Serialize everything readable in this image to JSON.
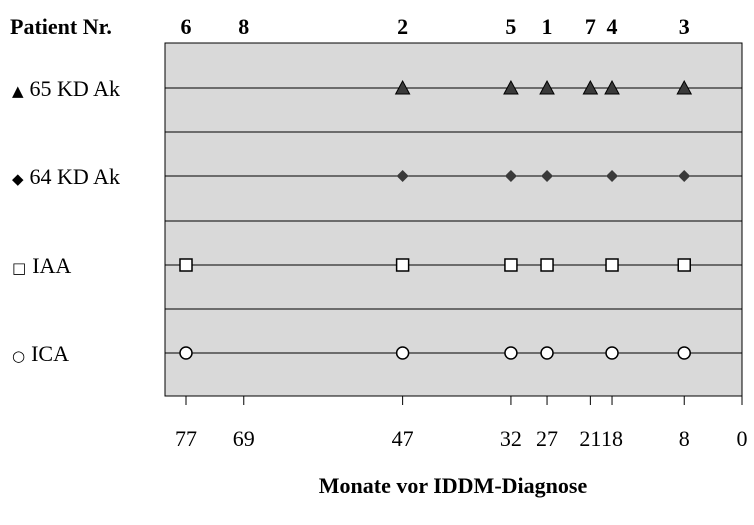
{
  "chart_data": {
    "type": "scatter",
    "patient_header": "Patient Nr.",
    "xlabel": "Monate vor IDDM-Diagnose",
    "x_ticks": [
      77,
      69,
      47,
      32,
      27,
      21,
      18,
      8,
      0
    ],
    "xlim": [
      80,
      0
    ],
    "x_reversed": true,
    "patients": [
      {
        "nr": "6",
        "months": 77
      },
      {
        "nr": "8",
        "months": 69
      },
      {
        "nr": "2",
        "months": 47
      },
      {
        "nr": "5",
        "months": 32
      },
      {
        "nr": "1",
        "months": 27
      },
      {
        "nr": "7",
        "months": 21
      },
      {
        "nr": "4",
        "months": 18
      },
      {
        "nr": "3",
        "months": 8
      }
    ],
    "series": [
      {
        "name": "65 KD Ak",
        "legend_symbol": "▲",
        "marker": "triangle",
        "x": [
          47,
          32,
          27,
          21,
          18,
          8
        ]
      },
      {
        "name": "64 KD Ak",
        "legend_symbol": "◆",
        "marker": "diamond",
        "x": [
          47,
          32,
          27,
          18,
          8
        ]
      },
      {
        "name": "IAA",
        "legend_symbol": "□",
        "marker": "square",
        "x": [
          77,
          47,
          32,
          27,
          18,
          8
        ]
      },
      {
        "name": "ICA",
        "legend_symbol": "○",
        "marker": "circle",
        "x": [
          77,
          47,
          32,
          27,
          18,
          8
        ]
      }
    ],
    "plot_background": "#d9d9d9",
    "marker_color": "#3a3a3a"
  }
}
